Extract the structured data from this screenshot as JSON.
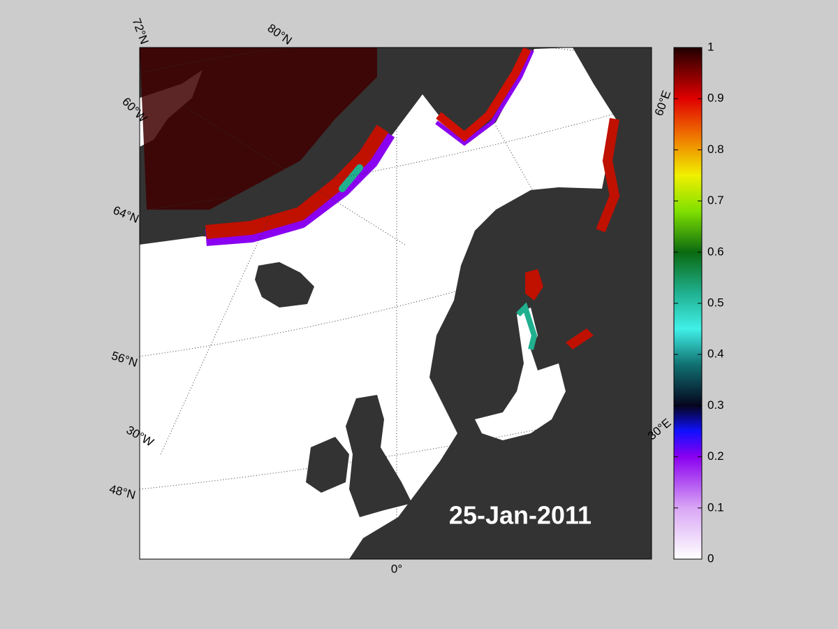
{
  "map": {
    "date": "25-Jan-2011",
    "grid_labels": [
      "72°N",
      "80°N",
      "60°W",
      "64°N",
      "56°N",
      "30°W",
      "48°N",
      "0°",
      "60°E",
      "30°E"
    ]
  },
  "colorbar": {
    "range": [
      0,
      1
    ],
    "ticks": [
      0,
      0.1,
      0.2,
      0.3,
      0.4,
      0.5,
      0.6,
      0.7,
      0.8,
      0.9,
      1
    ]
  }
}
